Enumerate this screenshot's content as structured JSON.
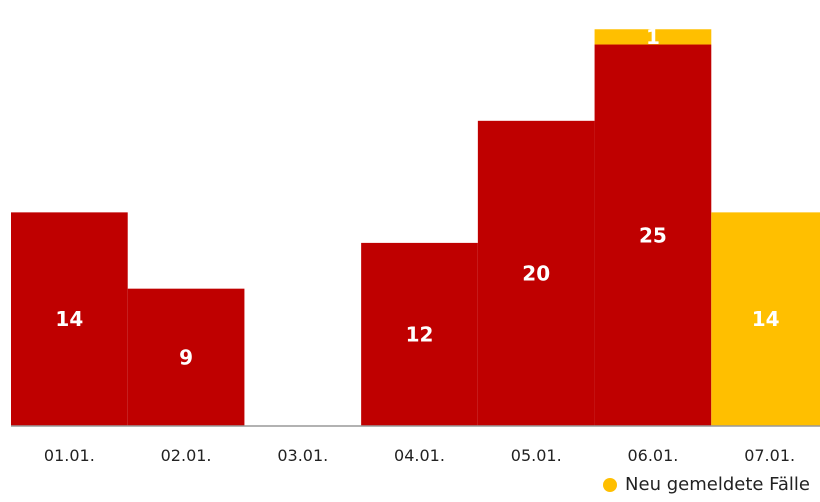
{
  "chart_data": {
    "type": "bar",
    "stacked": true,
    "categories": [
      "01.01.",
      "02.01.",
      "03.01.",
      "04.01.",
      "05.01.",
      "06.01.",
      "07.01."
    ],
    "series": [
      {
        "color": "#bf0000",
        "values": [
          14,
          9,
          0,
          12,
          20,
          25,
          0
        ],
        "labels": [
          "14",
          "9",
          "",
          "12",
          "20",
          "25",
          ""
        ]
      },
      {
        "name": "Neu gemeldete Fälle",
        "color": "#ffbf00",
        "values": [
          0,
          0,
          0,
          0,
          0,
          1,
          14
        ],
        "labels": [
          "",
          "",
          "",
          "",
          "",
          "1",
          "14"
        ]
      }
    ],
    "ylim": [
      0,
      27
    ],
    "legend": {
      "label": "Neu gemeldete Fälle",
      "color": "#ffbf00",
      "placement": "bottom-right"
    }
  }
}
